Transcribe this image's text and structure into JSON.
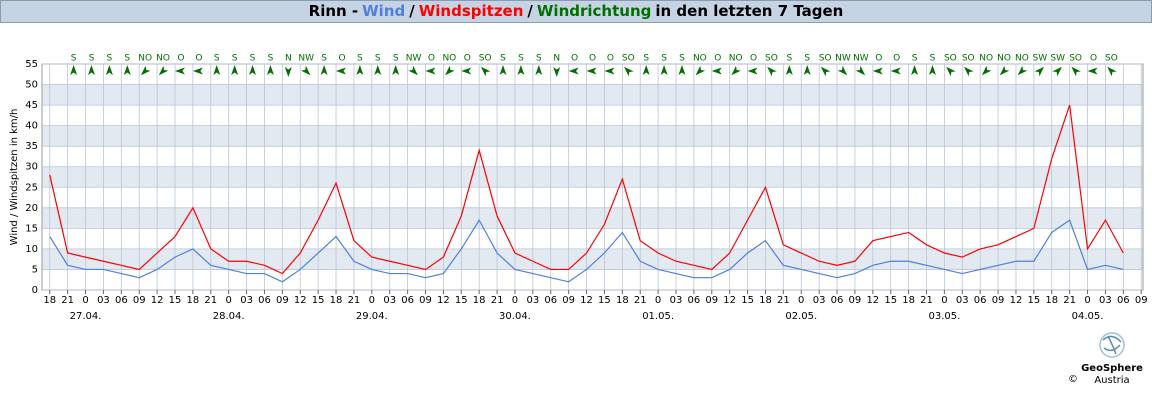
{
  "chart_data": {
    "type": "line",
    "location": "Rinn -",
    "separator": "/",
    "title_rest": "in den letzten 7 Tagen",
    "y_label": "Wind / Windspitzen in km/h",
    "x": [
      0,
      3,
      6,
      9,
      12,
      15,
      18,
      21,
      24,
      27,
      30,
      33,
      36,
      39,
      42,
      45,
      48,
      51,
      54,
      57,
      60,
      63,
      66,
      69,
      72,
      75,
      78,
      81,
      84,
      87,
      90,
      93,
      96,
      99,
      102,
      105,
      108,
      111,
      114,
      117,
      120,
      123,
      126,
      129,
      132,
      135,
      138,
      141,
      144,
      147,
      150,
      153,
      156,
      159,
      162,
      165,
      168,
      171,
      174,
      177,
      180
    ],
    "series": [
      {
        "name": "Windspitzen",
        "color": "#ff0000",
        "values": [
          28,
          9,
          8,
          7,
          6,
          5,
          9,
          13,
          20,
          10,
          7,
          7,
          6,
          4,
          9,
          17,
          26,
          12,
          8,
          7,
          6,
          5,
          8,
          18,
          34,
          18,
          9,
          7,
          5,
          5,
          9,
          16,
          27,
          12,
          9,
          7,
          6,
          5,
          9,
          17,
          25,
          11,
          9,
          7,
          6,
          7,
          12,
          13,
          14,
          11,
          9,
          8,
          10,
          11,
          13,
          15,
          32,
          45,
          10,
          17,
          9
        ]
      },
      {
        "name": "Wind",
        "color": "#4f7fdf",
        "values": [
          13,
          6,
          5,
          5,
          4,
          3,
          5,
          8,
          10,
          6,
          5,
          4,
          4,
          2,
          5,
          9,
          13,
          7,
          5,
          4,
          4,
          3,
          4,
          10,
          17,
          9,
          5,
          4,
          3,
          2,
          5,
          9,
          14,
          7,
          5,
          4,
          3,
          3,
          5,
          9,
          12,
          6,
          5,
          4,
          3,
          4,
          6,
          7,
          7,
          6,
          5,
          4,
          5,
          6,
          7,
          7,
          14,
          17,
          5,
          6,
          5
        ]
      }
    ],
    "directions": {
      "name": "Windrichtung",
      "color": "#007000",
      "x": [
        4,
        7,
        10,
        13,
        16,
        19,
        22,
        25,
        28,
        31,
        34,
        37,
        40,
        43,
        46,
        49,
        52,
        55,
        58,
        61,
        64,
        67,
        70,
        73,
        76,
        79,
        82,
        85,
        88,
        91,
        94,
        97,
        100,
        103,
        106,
        109,
        112,
        115,
        118,
        121,
        124,
        127,
        130,
        133,
        136,
        139,
        142,
        145,
        148,
        151,
        154,
        157,
        160,
        163,
        166,
        169,
        172,
        175,
        178
      ],
      "labels": [
        "S",
        "S",
        "S",
        "S",
        "NO",
        "NO",
        "O",
        "O",
        "S",
        "S",
        "S",
        "S",
        "N",
        "NW",
        "S",
        "O",
        "S",
        "S",
        "S",
        "NW",
        "O",
        "NO",
        "O",
        "SO",
        "S",
        "S",
        "S",
        "N",
        "O",
        "O",
        "O",
        "SO",
        "S",
        "S",
        "S",
        "NO",
        "O",
        "NO",
        "O",
        "SO",
        "S",
        "S",
        "SO",
        "NW",
        "NW",
        "O",
        "O",
        "S",
        "S",
        "SO",
        "SO",
        "NO",
        "NO",
        "NO",
        "SW",
        "SW",
        "SO",
        "O",
        "SO"
      ]
    },
    "xlim": [
      -1.3,
      183.3
    ],
    "ylim": [
      0,
      55
    ],
    "yticks": [
      0,
      5,
      10,
      15,
      20,
      25,
      30,
      35,
      40,
      45,
      50,
      55
    ],
    "xticks": [
      {
        "value": 0,
        "label": "18"
      },
      {
        "value": 3,
        "label": "21"
      },
      {
        "value": 6,
        "label": "0"
      },
      {
        "value": 9,
        "label": "03"
      },
      {
        "value": 12,
        "label": "06"
      },
      {
        "value": 15,
        "label": "09"
      },
      {
        "value": 18,
        "label": "12"
      },
      {
        "value": 21,
        "label": "15"
      },
      {
        "value": 24,
        "label": "18"
      },
      {
        "value": 27,
        "label": "21"
      },
      {
        "value": 30,
        "label": "0"
      },
      {
        "value": 33,
        "label": "03"
      },
      {
        "value": 36,
        "label": "06"
      },
      {
        "value": 39,
        "label": "09"
      },
      {
        "value": 42,
        "label": "12"
      },
      {
        "value": 45,
        "label": "15"
      },
      {
        "value": 48,
        "label": "18"
      },
      {
        "value": 51,
        "label": "21"
      },
      {
        "value": 54,
        "label": "0"
      },
      {
        "value": 57,
        "label": "03"
      },
      {
        "value": 60,
        "label": "06"
      },
      {
        "value": 63,
        "label": "09"
      },
      {
        "value": 66,
        "label": "12"
      },
      {
        "value": 69,
        "label": "15"
      },
      {
        "value": 72,
        "label": "18"
      },
      {
        "value": 75,
        "label": "21"
      },
      {
        "value": 78,
        "label": "0"
      },
      {
        "value": 81,
        "label": "03"
      },
      {
        "value": 84,
        "label": "06"
      },
      {
        "value": 87,
        "label": "09"
      },
      {
        "value": 90,
        "label": "12"
      },
      {
        "value": 93,
        "label": "15"
      },
      {
        "value": 96,
        "label": "18"
      },
      {
        "value": 99,
        "label": "21"
      },
      {
        "value": 102,
        "label": "0"
      },
      {
        "value": 105,
        "label": "03"
      },
      {
        "value": 108,
        "label": "06"
      },
      {
        "value": 111,
        "label": "09"
      },
      {
        "value": 114,
        "label": "12"
      },
      {
        "value": 117,
        "label": "15"
      },
      {
        "value": 120,
        "label": "18"
      },
      {
        "value": 123,
        "label": "21"
      },
      {
        "value": 126,
        "label": "0"
      },
      {
        "value": 129,
        "label": "03"
      },
      {
        "value": 132,
        "label": "06"
      },
      {
        "value": 135,
        "label": "09"
      },
      {
        "value": 138,
        "label": "12"
      },
      {
        "value": 141,
        "label": "15"
      },
      {
        "value": 144,
        "label": "18"
      },
      {
        "value": 147,
        "label": "21"
      },
      {
        "value": 150,
        "label": "0"
      },
      {
        "value": 153,
        "label": "03"
      },
      {
        "value": 156,
        "label": "06"
      },
      {
        "value": 159,
        "label": "09"
      },
      {
        "value": 162,
        "label": "12"
      },
      {
        "value": 165,
        "label": "15"
      },
      {
        "value": 168,
        "label": "18"
      },
      {
        "value": 171,
        "label": "21"
      },
      {
        "value": 174,
        "label": "0"
      },
      {
        "value": 177,
        "label": "03"
      },
      {
        "value": 180,
        "label": "06"
      },
      {
        "value": 183,
        "label": "09"
      }
    ],
    "date_labels": [
      {
        "value": 6,
        "label": "27.04."
      },
      {
        "value": 30,
        "label": "28.04."
      },
      {
        "value": 54,
        "label": "29.04."
      },
      {
        "value": 78,
        "label": "30.04."
      },
      {
        "value": 102,
        "label": "01.05."
      },
      {
        "value": 126,
        "label": "02.05."
      },
      {
        "value": 150,
        "label": "03.05."
      },
      {
        "value": 174,
        "label": "04.05."
      }
    ],
    "grid": true,
    "brand": "GeoSphere",
    "brand_sub": "Austria",
    "copyright": "©"
  }
}
